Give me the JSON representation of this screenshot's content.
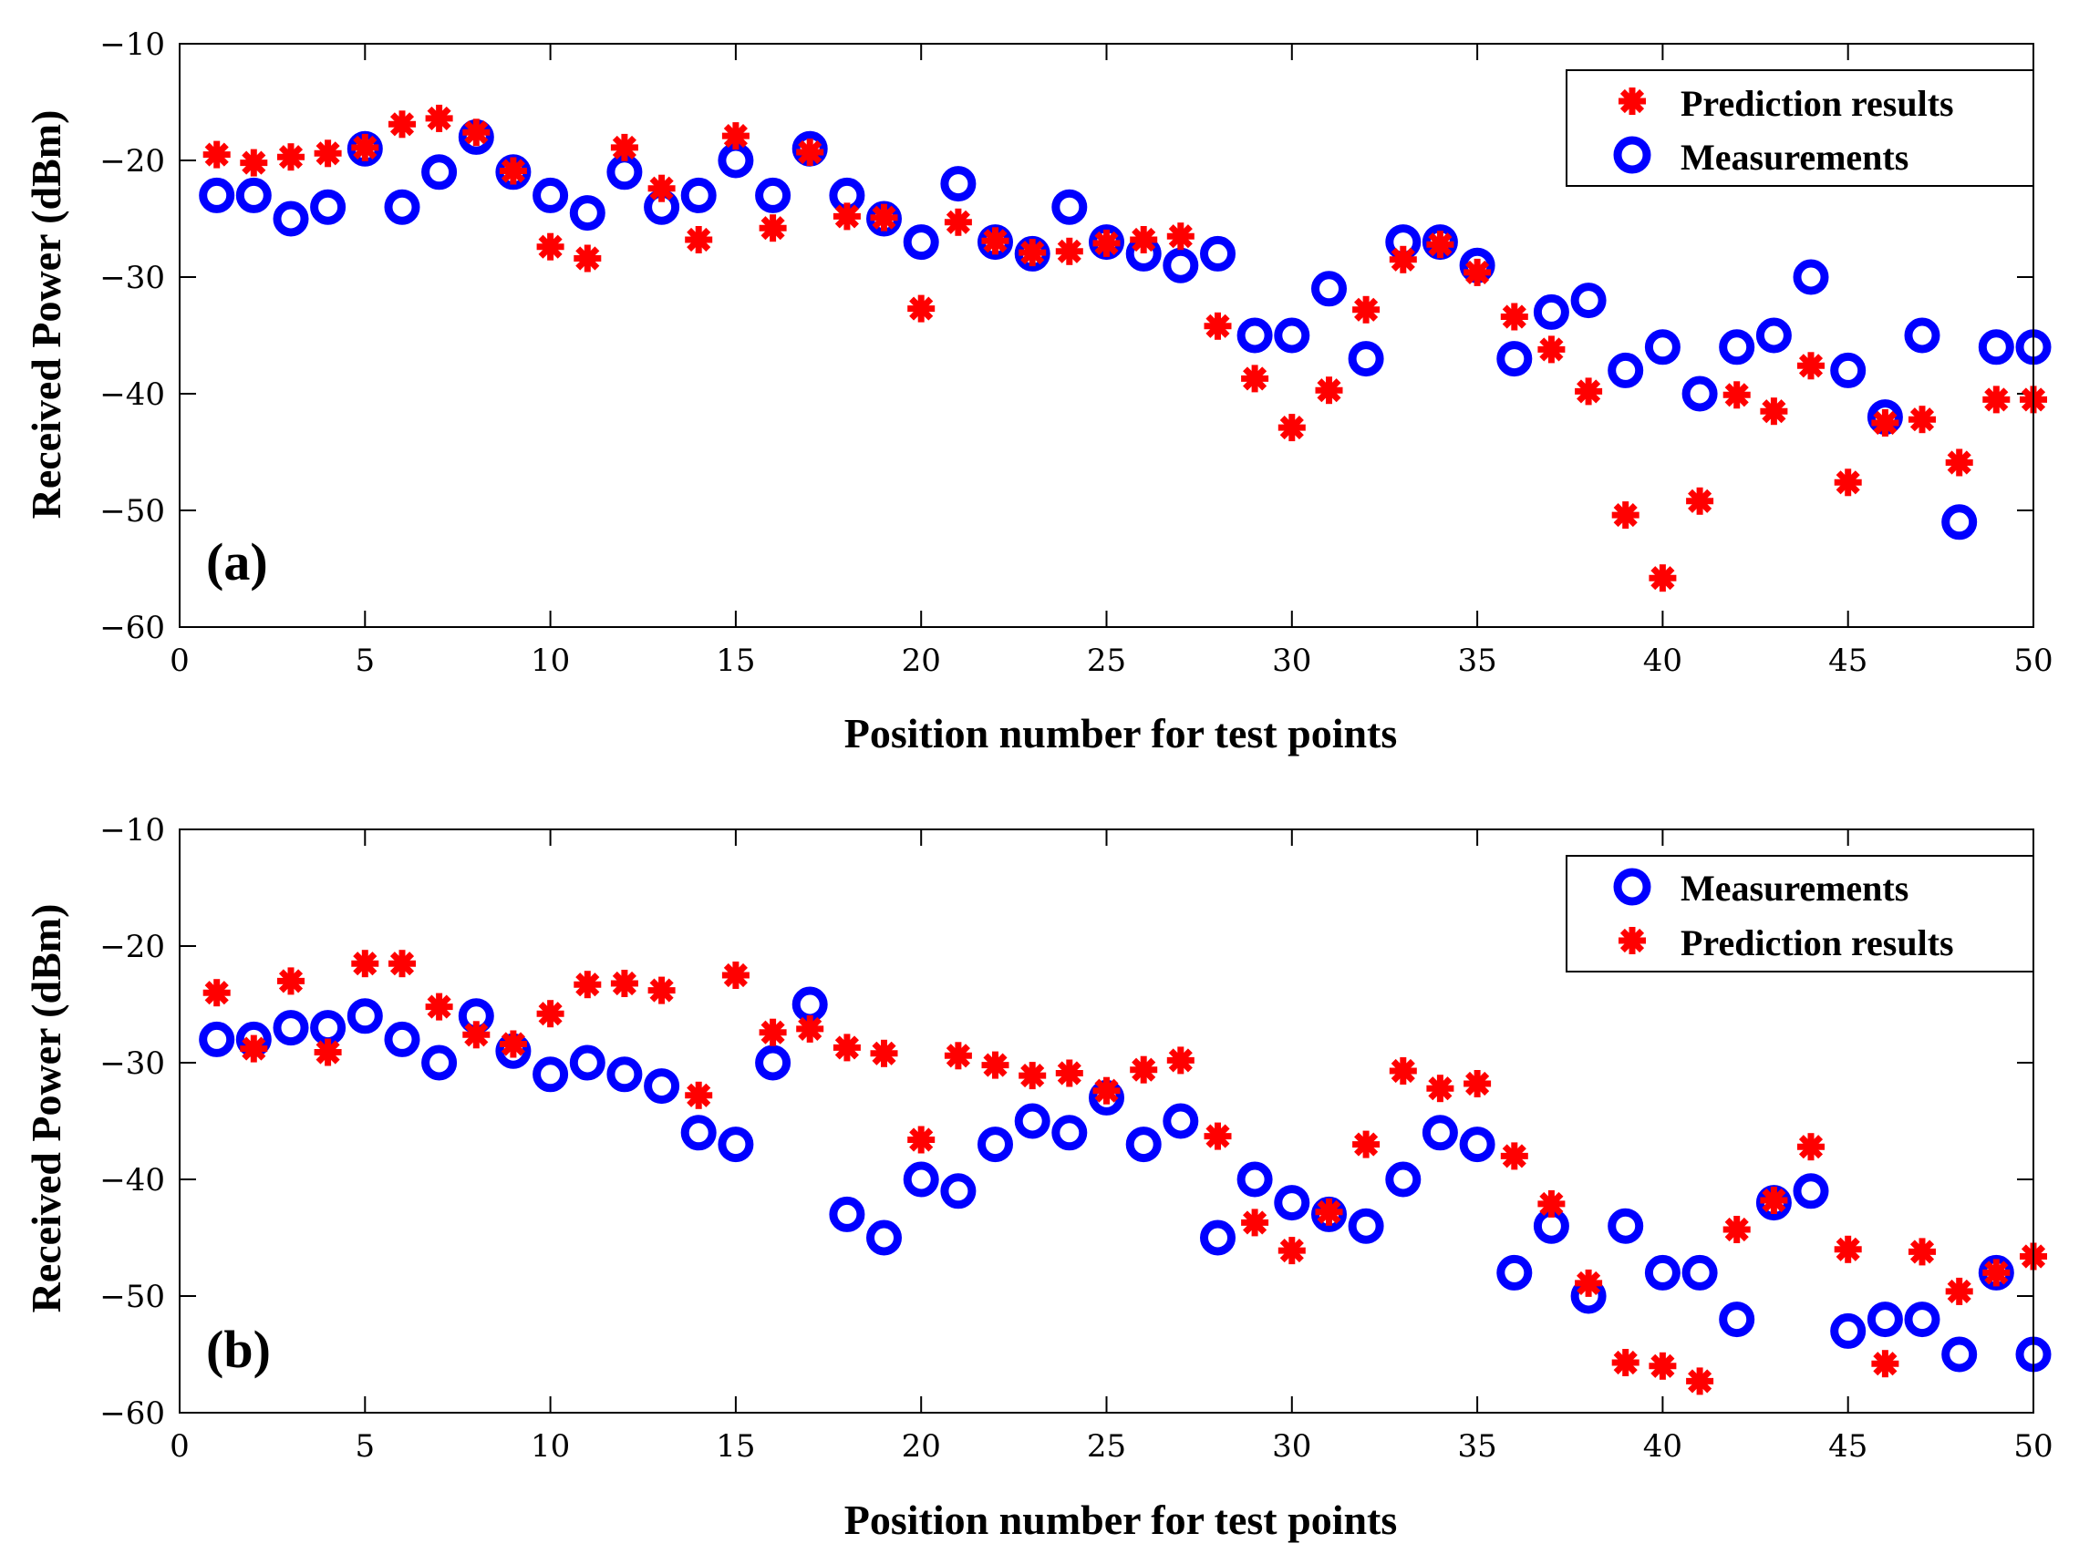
{
  "chart_data": [
    {
      "type": "scatter",
      "panel_label": "(a)",
      "xlabel": "Position number for test points",
      "ylabel": "Received Power (dBm)",
      "xlim": [
        0,
        50
      ],
      "ylim": [
        -60,
        -10
      ],
      "x_ticks": [
        0,
        5,
        10,
        15,
        20,
        25,
        30,
        35,
        40,
        45,
        50
      ],
      "x_tick_labels": [
        "0",
        "5",
        "10",
        "15",
        "20",
        "25",
        "30",
        "35",
        "40",
        "45",
        "50"
      ],
      "y_ticks": [
        -60,
        -50,
        -40,
        -30,
        -20,
        -10
      ],
      "y_tick_labels": [
        "−60",
        "−50",
        "−40",
        "−30",
        "−20",
        "−10"
      ],
      "grid": false,
      "legend_position": "top-right",
      "legend_order": [
        "Prediction results",
        "Measurements"
      ],
      "x": [
        1,
        2,
        3,
        4,
        5,
        6,
        7,
        8,
        9,
        10,
        11,
        12,
        13,
        14,
        15,
        16,
        17,
        18,
        19,
        20,
        21,
        22,
        23,
        24,
        25,
        26,
        27,
        28,
        29,
        30,
        31,
        32,
        33,
        34,
        35,
        36,
        37,
        38,
        39,
        40,
        41,
        42,
        43,
        44,
        45,
        46,
        47,
        48,
        49,
        50
      ],
      "series": [
        {
          "name": "Prediction results",
          "marker": "asterisk",
          "color": "#ff0000",
          "values": [
            -19.5,
            -20.2,
            -19.7,
            -19.4,
            -18.9,
            -16.9,
            -16.4,
            -17.6,
            -20.9,
            -27.4,
            -28.4,
            -18.9,
            -22.4,
            -26.8,
            -17.9,
            -25.8,
            -19.3,
            -24.8,
            -24.9,
            -32.7,
            -25.3,
            -26.9,
            -27.9,
            -27.8,
            -27.1,
            -26.8,
            -26.5,
            -34.2,
            -38.7,
            -42.9,
            -39.7,
            -32.8,
            -28.5,
            -27.2,
            -29.6,
            -33.4,
            -36.2,
            -39.8,
            -50.4,
            -55.8,
            -49.2,
            -40.1,
            -41.5,
            -37.6,
            -47.6,
            -42.5,
            -42.2,
            -45.9,
            -40.5,
            -40.5
          ]
        },
        {
          "name": "Measurements",
          "marker": "circle",
          "color": "#0000ff",
          "values": [
            -23,
            -23,
            -25,
            -24,
            -19,
            -24,
            -21,
            -18,
            -21,
            -23,
            -24.5,
            -21,
            -24,
            -23,
            -20,
            -23,
            -19,
            -23,
            -25,
            -27,
            -22,
            -27,
            -28,
            -24,
            -27,
            -28,
            -29,
            -28,
            -35,
            -35,
            -31,
            -37,
            -27,
            -27,
            -29,
            -37,
            -33,
            -32,
            -38,
            -36,
            -40,
            -36,
            -35,
            -30,
            -38,
            -42,
            -35,
            -51,
            -36,
            -36
          ]
        }
      ]
    },
    {
      "type": "scatter",
      "panel_label": "(b)",
      "xlabel": "Position number for test points",
      "ylabel": "Received Power (dBm)",
      "xlim": [
        0,
        50
      ],
      "ylim": [
        -60,
        -10
      ],
      "x_ticks": [
        0,
        5,
        10,
        15,
        20,
        25,
        30,
        35,
        40,
        45,
        50
      ],
      "x_tick_labels": [
        "0",
        "5",
        "10",
        "15",
        "20",
        "25",
        "30",
        "35",
        "40",
        "45",
        "50"
      ],
      "y_ticks": [
        -60,
        -50,
        -40,
        -30,
        -20,
        -10
      ],
      "y_tick_labels": [
        "−60",
        "−50",
        "−40",
        "−30",
        "−20",
        "−10"
      ],
      "grid": false,
      "legend_position": "top-right",
      "legend_order": [
        "Measurements",
        "Prediction results"
      ],
      "x": [
        1,
        2,
        3,
        4,
        5,
        6,
        7,
        8,
        9,
        10,
        11,
        12,
        13,
        14,
        15,
        16,
        17,
        18,
        19,
        20,
        21,
        22,
        23,
        24,
        25,
        26,
        27,
        28,
        29,
        30,
        31,
        32,
        33,
        34,
        35,
        36,
        37,
        38,
        39,
        40,
        41,
        42,
        43,
        44,
        45,
        46,
        47,
        48,
        49,
        50
      ],
      "series": [
        {
          "name": "Measurements",
          "marker": "circle",
          "color": "#0000ff",
          "values": [
            -28,
            -28,
            -27,
            -27,
            -26,
            -28,
            -30,
            -26,
            -29,
            -31,
            -30,
            -31,
            -32,
            -36,
            -37,
            -30,
            -25,
            -43,
            -45,
            -40,
            -41,
            -37,
            -35,
            -36,
            -33,
            -37,
            -35,
            -45,
            -40,
            -42,
            -43,
            -44,
            -40,
            -36,
            -37,
            -48,
            -44,
            -50,
            -44,
            -48,
            -48,
            -52,
            -42,
            -41,
            -53,
            -52,
            -52,
            -55,
            -48,
            -55
          ]
        },
        {
          "name": "Prediction results",
          "marker": "asterisk",
          "color": "#ff0000",
          "values": [
            -24,
            -28.8,
            -23,
            -29.1,
            -21.5,
            -21.5,
            -25.2,
            -27.6,
            -28.4,
            -25.8,
            -23.3,
            -23.2,
            -23.8,
            -32.8,
            -22.5,
            -27.4,
            -27.1,
            -28.7,
            -29.2,
            -36.6,
            -29.4,
            -30.2,
            -31.1,
            -30.9,
            -32.4,
            -30.6,
            -29.8,
            -36.3,
            -43.7,
            -46.1,
            -42.8,
            -37,
            -30.7,
            -32.2,
            -31.8,
            -38,
            -42.1,
            -48.9,
            -55.7,
            -56,
            -57.3,
            -44.3,
            -41.8,
            -37.2,
            -46,
            -55.8,
            -46.2,
            -49.6,
            -48,
            -46.6
          ]
        }
      ]
    }
  ]
}
